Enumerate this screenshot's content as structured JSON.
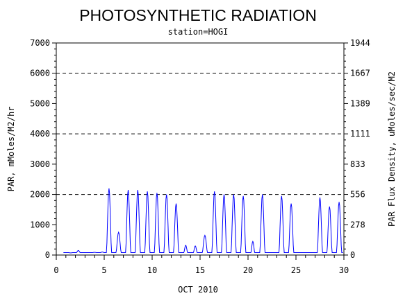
{
  "chart_data": {
    "type": "line",
    "title": "PHOTOSYNTHETIC RADIATION",
    "subtitle": "station=HOGI",
    "xlabel": "OCT 2010",
    "ylabel": "PAR, mMoles/M2/hr",
    "ylabel_right": "PAR Flux Density, uMoles/sec/M2",
    "xlim": [
      0,
      30
    ],
    "ylim": [
      0,
      7000
    ],
    "x_ticks": [
      "0",
      "5",
      "10",
      "15",
      "20",
      "25",
      "30"
    ],
    "y_ticks": [
      "0",
      "1000",
      "2000",
      "3000",
      "4000",
      "5000",
      "6000",
      "7000"
    ],
    "y_right_ticks": [
      "0",
      "278",
      "556",
      "833",
      "1111",
      "1389",
      "1667",
      "1944"
    ],
    "gridlines_y": [
      2000,
      4000,
      6000
    ],
    "series_color": "#0000ff",
    "daily_peaks": [
      {
        "day": 0.95,
        "peak": 80
      },
      {
        "day": 1.5,
        "peak": 70
      },
      {
        "day": 2.3,
        "peak": 150
      },
      {
        "day": 3.2,
        "peak": 80
      },
      {
        "day": 4.0,
        "peak": 90
      },
      {
        "day": 4.8,
        "peak": 100
      },
      {
        "day": 5.5,
        "peak": 2200
      },
      {
        "day": 6.5,
        "peak": 750
      },
      {
        "day": 7.5,
        "peak": 2150
      },
      {
        "day": 8.5,
        "peak": 2150
      },
      {
        "day": 9.5,
        "peak": 2100
      },
      {
        "day": 10.5,
        "peak": 2050
      },
      {
        "day": 11.5,
        "peak": 2000
      },
      {
        "day": 12.5,
        "peak": 1700
      },
      {
        "day": 13.5,
        "peak": 320
      },
      {
        "day": 14.5,
        "peak": 300
      },
      {
        "day": 15.5,
        "peak": 650
      },
      {
        "day": 16.5,
        "peak": 2100
      },
      {
        "day": 17.5,
        "peak": 2000
      },
      {
        "day": 18.5,
        "peak": 2000
      },
      {
        "day": 19.5,
        "peak": 1950
      },
      {
        "day": 20.5,
        "peak": 450
      },
      {
        "day": 21.5,
        "peak": 2000
      },
      {
        "day": 22.5,
        "peak": 80
      },
      {
        "day": 23.5,
        "peak": 1950
      },
      {
        "day": 24.5,
        "peak": 1700
      },
      {
        "day": 25.5,
        "peak": 80
      },
      {
        "day": 26.5,
        "peak": 80
      },
      {
        "day": 27.5,
        "peak": 1900
      },
      {
        "day": 28.5,
        "peak": 1600
      },
      {
        "day": 29.5,
        "peak": 1750
      }
    ]
  }
}
